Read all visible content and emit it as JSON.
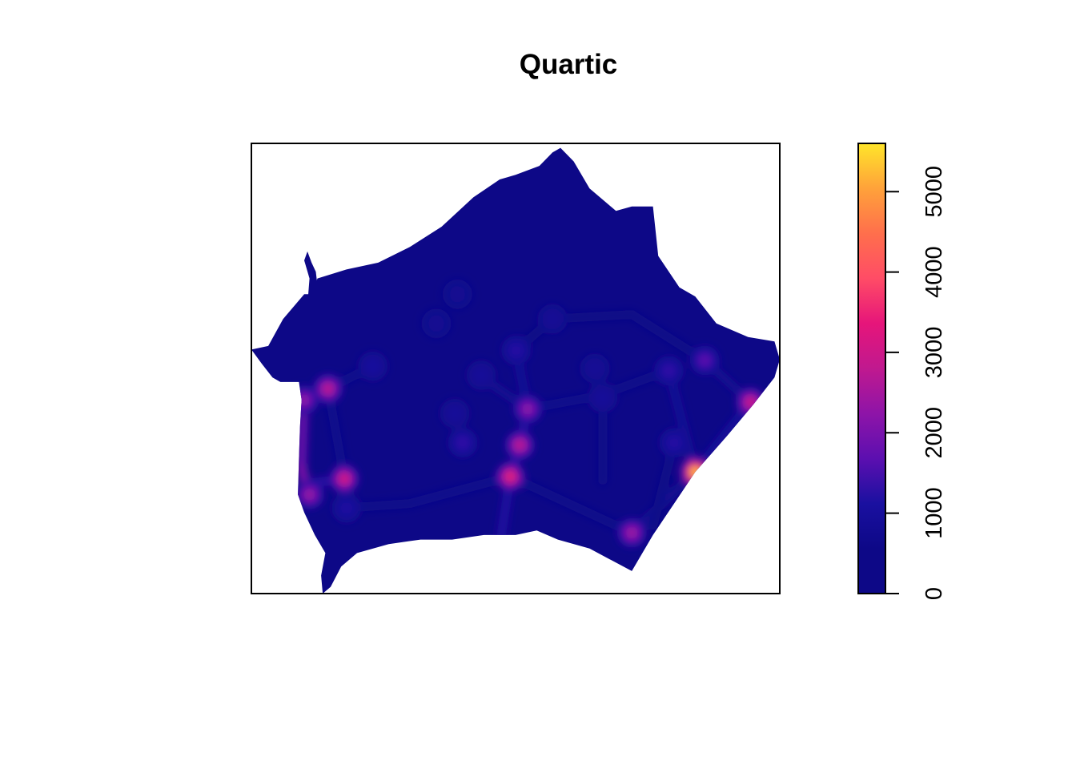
{
  "chart_data": {
    "type": "heatmap",
    "title": "Quartic",
    "xlabel": "",
    "ylabel": "",
    "colorbar": {
      "min": 0,
      "max": 5600,
      "ticks": [
        0,
        1000,
        2000,
        3000,
        4000,
        5000
      ],
      "tick_labels": [
        "0",
        "1000",
        "2000",
        "3000",
        "4000",
        "5000"
      ],
      "palette": [
        "#0D0887",
        "#0D0887",
        "#1A10A0",
        "#5C0FB0",
        "#8E14A8",
        "#C0198F",
        "#E6157A",
        "#FF4C66",
        "#FF6F4C",
        "#FFA23A",
        "#FFE52A"
      ]
    },
    "background_color": "#0D0887",
    "hotspots": [
      {
        "x": 0.145,
        "y": 0.545,
        "value": 3000
      },
      {
        "x": 0.176,
        "y": 0.745,
        "value": 3300
      },
      {
        "x": 0.1,
        "y": 0.57,
        "value": 2400
      },
      {
        "x": 0.11,
        "y": 0.78,
        "value": 2500
      },
      {
        "x": 0.49,
        "y": 0.74,
        "value": 3600
      },
      {
        "x": 0.508,
        "y": 0.67,
        "value": 3000
      },
      {
        "x": 0.523,
        "y": 0.59,
        "value": 2400
      },
      {
        "x": 0.501,
        "y": 0.46,
        "value": 1300
      },
      {
        "x": 0.39,
        "y": 0.335,
        "value": 800
      },
      {
        "x": 0.84,
        "y": 0.73,
        "value": 5600
      },
      {
        "x": 0.945,
        "y": 0.575,
        "value": 3200
      },
      {
        "x": 0.72,
        "y": 0.865,
        "value": 2600
      },
      {
        "x": 0.858,
        "y": 0.482,
        "value": 1800
      },
      {
        "x": 0.79,
        "y": 0.505,
        "value": 1400
      },
      {
        "x": 0.18,
        "y": 0.81,
        "value": 1200
      },
      {
        "x": 0.4,
        "y": 0.665,
        "value": 1400
      },
      {
        "x": 0.23,
        "y": 0.495,
        "value": 1100
      },
      {
        "x": 0.435,
        "y": 0.515,
        "value": 1000
      },
      {
        "x": 0.57,
        "y": 0.39,
        "value": 900
      },
      {
        "x": 0.65,
        "y": 0.5,
        "value": 900
      },
      {
        "x": 0.665,
        "y": 0.565,
        "value": 1000
      },
      {
        "x": 0.8,
        "y": 0.665,
        "value": 1300
      },
      {
        "x": 0.385,
        "y": 0.6,
        "value": 1000
      },
      {
        "x": 0.35,
        "y": 0.4,
        "value": 800
      }
    ],
    "ridges": [
      {
        "x1": 0.1,
        "y1": 0.55,
        "x2": 0.095,
        "y2": 0.72,
        "value": 1900
      },
      {
        "x1": 0.095,
        "y1": 0.72,
        "x2": 0.11,
        "y2": 0.8,
        "value": 2100
      },
      {
        "x1": 0.11,
        "y1": 0.755,
        "x2": 0.176,
        "y2": 0.745,
        "value": 1300
      },
      {
        "x1": 0.49,
        "y1": 0.74,
        "x2": 0.473,
        "y2": 0.87,
        "value": 1200
      },
      {
        "x1": 0.49,
        "y1": 0.74,
        "x2": 0.508,
        "y2": 0.67,
        "value": 1400
      },
      {
        "x1": 0.508,
        "y1": 0.67,
        "x2": 0.523,
        "y2": 0.59,
        "value": 1300
      },
      {
        "x1": 0.523,
        "y1": 0.59,
        "x2": 0.501,
        "y2": 0.46,
        "value": 900
      },
      {
        "x1": 0.523,
        "y1": 0.59,
        "x2": 0.43,
        "y2": 0.515,
        "value": 800
      },
      {
        "x1": 0.523,
        "y1": 0.59,
        "x2": 0.66,
        "y2": 0.56,
        "value": 700
      },
      {
        "x1": 0.66,
        "y1": 0.56,
        "x2": 0.8,
        "y2": 0.5,
        "value": 650
      },
      {
        "x1": 0.49,
        "y1": 0.74,
        "x2": 0.3,
        "y2": 0.8,
        "value": 700
      },
      {
        "x1": 0.3,
        "y1": 0.8,
        "x2": 0.18,
        "y2": 0.81,
        "value": 650
      },
      {
        "x1": 0.49,
        "y1": 0.74,
        "x2": 0.72,
        "y2": 0.865,
        "value": 650
      },
      {
        "x1": 0.72,
        "y1": 0.865,
        "x2": 0.84,
        "y2": 0.73,
        "value": 800
      },
      {
        "x1": 0.84,
        "y1": 0.73,
        "x2": 0.79,
        "y2": 0.505,
        "value": 900
      },
      {
        "x1": 0.84,
        "y1": 0.73,
        "x2": 0.945,
        "y2": 0.575,
        "value": 1000
      },
      {
        "x1": 0.945,
        "y1": 0.575,
        "x2": 0.858,
        "y2": 0.482,
        "value": 800
      },
      {
        "x1": 0.858,
        "y1": 0.482,
        "x2": 0.72,
        "y2": 0.38,
        "value": 600
      },
      {
        "x1": 0.72,
        "y1": 0.38,
        "x2": 0.57,
        "y2": 0.39,
        "value": 550
      },
      {
        "x1": 0.57,
        "y1": 0.39,
        "x2": 0.501,
        "y2": 0.46,
        "value": 550
      },
      {
        "x1": 0.145,
        "y1": 0.545,
        "x2": 0.23,
        "y2": 0.495,
        "value": 700
      },
      {
        "x1": 0.145,
        "y1": 0.545,
        "x2": 0.176,
        "y2": 0.745,
        "value": 700
      },
      {
        "x1": 0.665,
        "y1": 0.565,
        "x2": 0.665,
        "y2": 0.75,
        "value": 600
      },
      {
        "x1": 0.8,
        "y1": 0.665,
        "x2": 0.76,
        "y2": 0.85,
        "value": 600
      }
    ],
    "region_outline": [
      [
        0.0,
        0.458
      ],
      [
        0.032,
        0.45
      ],
      [
        0.06,
        0.39
      ],
      [
        0.1,
        0.335
      ],
      [
        0.115,
        0.335
      ],
      [
        0.125,
        0.3
      ],
      [
        0.18,
        0.28
      ],
      [
        0.24,
        0.265
      ],
      [
        0.3,
        0.23
      ],
      [
        0.36,
        0.185
      ],
      [
        0.42,
        0.12
      ],
      [
        0.47,
        0.08
      ],
      [
        0.5,
        0.07
      ],
      [
        0.545,
        0.05
      ],
      [
        0.57,
        0.02
      ],
      [
        0.585,
        0.01
      ],
      [
        0.61,
        0.04
      ],
      [
        0.64,
        0.1
      ],
      [
        0.69,
        0.15
      ],
      [
        0.72,
        0.14
      ],
      [
        0.76,
        0.14
      ],
      [
        0.77,
        0.25
      ],
      [
        0.81,
        0.32
      ],
      [
        0.84,
        0.34
      ],
      [
        0.88,
        0.4
      ],
      [
        0.94,
        0.43
      ],
      [
        0.99,
        0.44
      ],
      [
        1.0,
        0.48
      ],
      [
        0.99,
        0.52
      ],
      [
        0.95,
        0.58
      ],
      [
        0.9,
        0.65
      ],
      [
        0.84,
        0.73
      ],
      [
        0.8,
        0.8
      ],
      [
        0.76,
        0.87
      ],
      [
        0.72,
        0.95
      ],
      [
        0.64,
        0.9
      ],
      [
        0.58,
        0.88
      ],
      [
        0.54,
        0.86
      ],
      [
        0.5,
        0.87
      ],
      [
        0.44,
        0.87
      ],
      [
        0.38,
        0.88
      ],
      [
        0.32,
        0.88
      ],
      [
        0.26,
        0.89
      ],
      [
        0.2,
        0.91
      ],
      [
        0.17,
        0.94
      ],
      [
        0.15,
        0.985
      ],
      [
        0.135,
        1.0
      ],
      [
        0.132,
        0.96
      ],
      [
        0.14,
        0.91
      ],
      [
        0.12,
        0.87
      ],
      [
        0.1,
        0.82
      ],
      [
        0.088,
        0.78
      ],
      [
        0.09,
        0.7
      ],
      [
        0.092,
        0.63
      ],
      [
        0.095,
        0.57
      ],
      [
        0.09,
        0.53
      ],
      [
        0.055,
        0.53
      ],
      [
        0.04,
        0.52
      ],
      [
        0.02,
        0.49
      ]
    ],
    "stem_outline": [
      [
        0.107,
        0.345
      ],
      [
        0.11,
        0.3
      ],
      [
        0.1,
        0.26
      ],
      [
        0.106,
        0.24
      ],
      [
        0.114,
        0.265
      ],
      [
        0.122,
        0.285
      ],
      [
        0.128,
        0.345
      ]
    ]
  }
}
